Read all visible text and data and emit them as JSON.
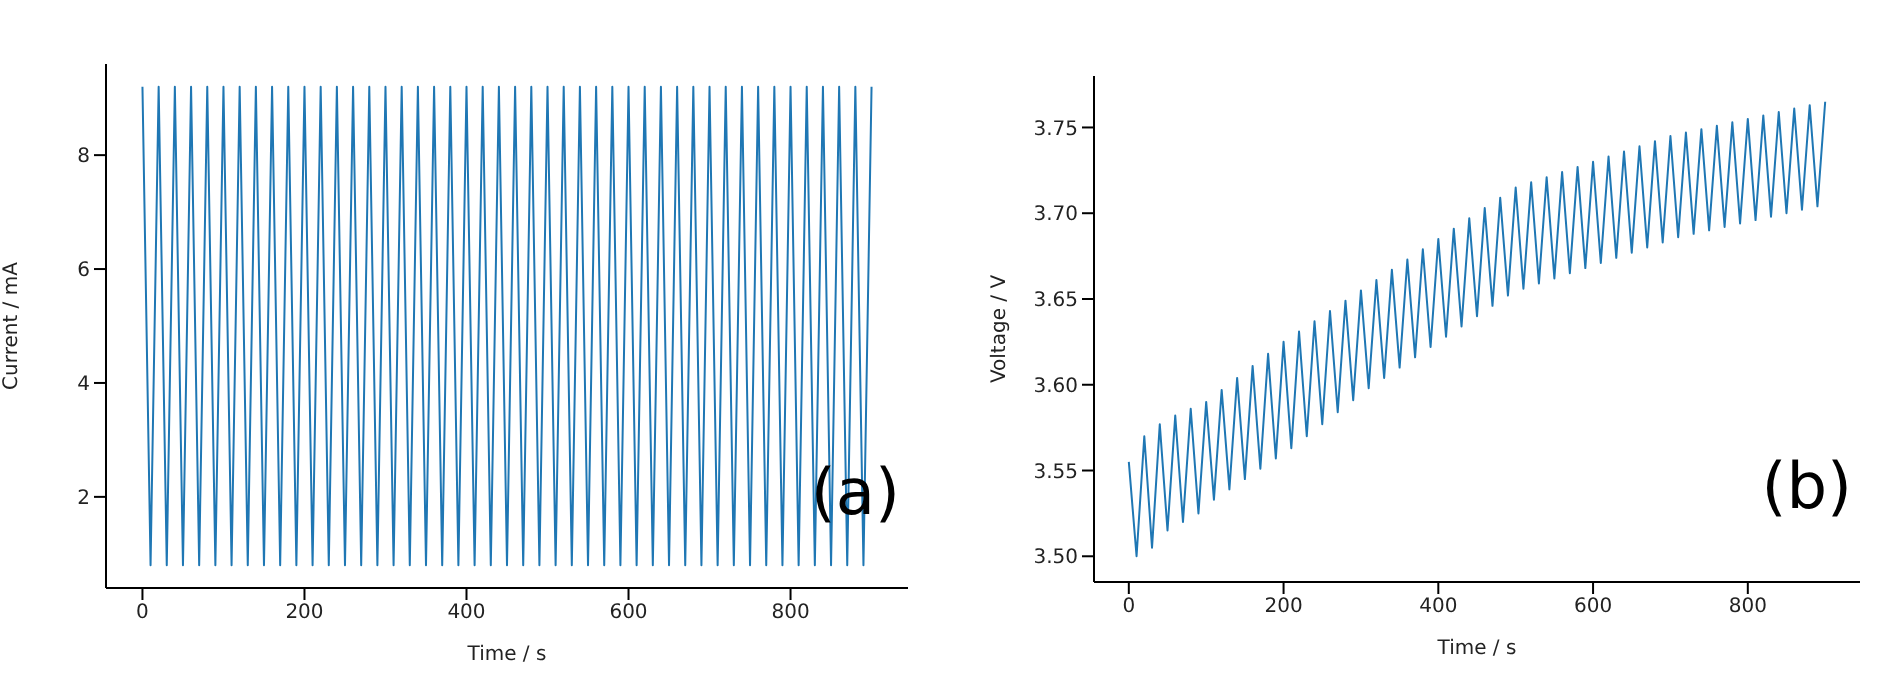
{
  "chart_data": [
    {
      "type": "line",
      "xlabel": "Time / s",
      "ylabel": "Current / mA",
      "annotations": [
        "(a)"
      ],
      "xlim": [
        -45,
        945
      ],
      "ylim": [
        0.4,
        9.6
      ],
      "xticks": [
        0,
        200,
        400,
        600,
        800
      ],
      "yticks": [
        2,
        4,
        6,
        8
      ],
      "grid": false,
      "legend": false,
      "marker": "none",
      "series": [
        {
          "color": "#1f77b4",
          "x": [
            0,
            10,
            20,
            30,
            40,
            50,
            60,
            70,
            80,
            90,
            100,
            110,
            120,
            130,
            140,
            150,
            160,
            170,
            180,
            190,
            200,
            210,
            220,
            230,
            240,
            250,
            260,
            270,
            280,
            290,
            300,
            310,
            320,
            330,
            340,
            350,
            360,
            370,
            380,
            390,
            400,
            410,
            420,
            430,
            440,
            450,
            460,
            470,
            480,
            490,
            500,
            510,
            520,
            530,
            540,
            550,
            560,
            570,
            580,
            590,
            600,
            610,
            620,
            630,
            640,
            650,
            660,
            670,
            680,
            690,
            700,
            710,
            720,
            730,
            740,
            750,
            760,
            770,
            780,
            790,
            800,
            810,
            820,
            830,
            840,
            850,
            860,
            870,
            880,
            890,
            900
          ],
          "values": [
            9.2,
            0.8,
            9.2,
            0.8,
            9.2,
            0.8,
            9.2,
            0.8,
            9.2,
            0.8,
            9.2,
            0.8,
            9.2,
            0.8,
            9.2,
            0.8,
            9.2,
            0.8,
            9.2,
            0.8,
            9.2,
            0.8,
            9.2,
            0.8,
            9.2,
            0.8,
            9.2,
            0.8,
            9.2,
            0.8,
            9.2,
            0.8,
            9.2,
            0.8,
            9.2,
            0.8,
            9.2,
            0.8,
            9.2,
            0.8,
            9.2,
            0.8,
            9.2,
            0.8,
            9.2,
            0.8,
            9.2,
            0.8,
            9.2,
            0.8,
            9.2,
            0.8,
            9.2,
            0.8,
            9.2,
            0.8,
            9.2,
            0.8,
            9.2,
            0.8,
            9.2,
            0.8,
            9.2,
            0.8,
            9.2,
            0.8,
            9.2,
            0.8,
            9.2,
            0.8,
            9.2,
            0.8,
            9.2,
            0.8,
            9.2,
            0.8,
            9.2,
            0.8,
            9.2,
            0.8,
            9.2,
            0.8,
            9.2,
            0.8,
            9.2,
            0.8,
            9.2,
            0.8,
            9.2,
            0.8,
            9.2
          ]
        }
      ]
    },
    {
      "type": "line",
      "xlabel": "Time / s",
      "ylabel": "Voltage / V",
      "annotations": [
        "(b)"
      ],
      "xlim": [
        -45,
        945
      ],
      "ylim": [
        3.485,
        3.78
      ],
      "xticks": [
        0,
        200,
        400,
        600,
        800
      ],
      "yticks": [
        {
          "value": 3.5,
          "label": "3.50"
        },
        {
          "value": 3.55,
          "label": "3.55"
        },
        {
          "value": 3.6,
          "label": "3.60"
        },
        {
          "value": 3.65,
          "label": "3.65"
        },
        {
          "value": 3.7,
          "label": "3.70"
        },
        {
          "value": 3.75,
          "label": "3.75"
        }
      ],
      "grid": false,
      "legend": false,
      "marker": "none",
      "series": [
        {
          "color": "#1f77b4",
          "x": [
            0,
            10,
            20,
            30,
            40,
            50,
            60,
            70,
            80,
            90,
            100,
            110,
            120,
            130,
            140,
            150,
            160,
            170,
            180,
            190,
            200,
            210,
            220,
            230,
            240,
            250,
            260,
            270,
            280,
            290,
            300,
            310,
            320,
            330,
            340,
            350,
            360,
            370,
            380,
            390,
            400,
            410,
            420,
            430,
            440,
            450,
            460,
            470,
            480,
            490,
            500,
            510,
            520,
            530,
            540,
            550,
            560,
            570,
            580,
            590,
            600,
            610,
            620,
            630,
            640,
            650,
            660,
            670,
            680,
            690,
            700,
            710,
            720,
            730,
            740,
            750,
            760,
            770,
            780,
            790,
            800,
            810,
            820,
            830,
            840,
            850,
            860,
            870,
            880,
            890,
            900
          ],
          "values": [
            3.555,
            3.5,
            3.57,
            3.505,
            3.577,
            3.515,
            3.582,
            3.52,
            3.586,
            3.525,
            3.59,
            3.533,
            3.597,
            3.539,
            3.604,
            3.545,
            3.611,
            3.551,
            3.618,
            3.557,
            3.625,
            3.563,
            3.631,
            3.57,
            3.637,
            3.577,
            3.643,
            3.584,
            3.649,
            3.591,
            3.655,
            3.598,
            3.661,
            3.604,
            3.667,
            3.61,
            3.673,
            3.616,
            3.679,
            3.622,
            3.685,
            3.628,
            3.691,
            3.634,
            3.697,
            3.64,
            3.703,
            3.646,
            3.709,
            3.652,
            3.715,
            3.656,
            3.718,
            3.659,
            3.721,
            3.662,
            3.724,
            3.665,
            3.727,
            3.668,
            3.73,
            3.671,
            3.733,
            3.674,
            3.736,
            3.677,
            3.739,
            3.68,
            3.742,
            3.683,
            3.745,
            3.686,
            3.747,
            3.688,
            3.749,
            3.69,
            3.751,
            3.692,
            3.753,
            3.694,
            3.755,
            3.696,
            3.757,
            3.698,
            3.759,
            3.7,
            3.761,
            3.702,
            3.763,
            3.704,
            3.765
          ]
        }
      ]
    }
  ]
}
